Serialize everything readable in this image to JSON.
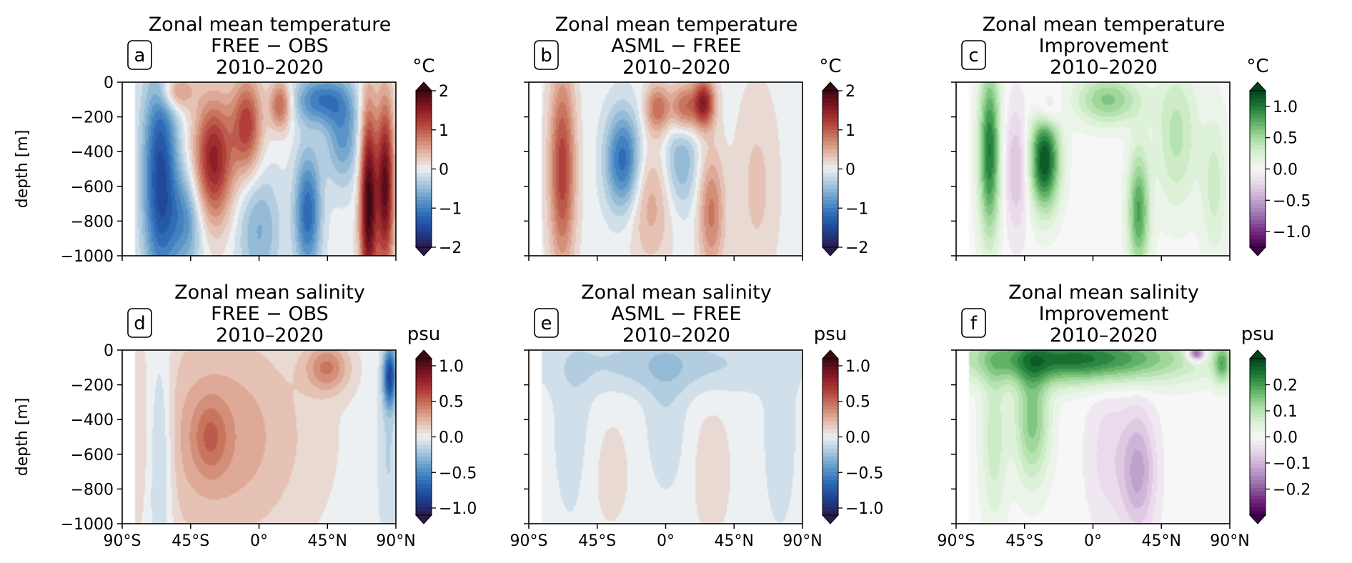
{
  "figure": {
    "layout": "2x3 panel grid"
  },
  "colors": {
    "balance": [
      "#2c1a4c",
      "#1f3f8f",
      "#2a68b5",
      "#5d98c9",
      "#a7c6dc",
      "#edf0f2",
      "#e4b9a8",
      "#cb7a62",
      "#b03a37",
      "#7f1622",
      "#3c0911"
    ],
    "purple_green": [
      "#40004b",
      "#762a83",
      "#9970ab",
      "#c2a5cf",
      "#e7d4e8",
      "#f7f7f7",
      "#d9f0d3",
      "#a6dba0",
      "#5aae61",
      "#1b7837",
      "#00441b"
    ],
    "axis": "#000000"
  },
  "chart_data": [
    {
      "panel": "a",
      "type": "heatmap",
      "title": [
        "Zonal mean temperature",
        "FREE − OBS",
        "2010–2020"
      ],
      "ylabel": "depth [m]",
      "unit": "°C",
      "colormap": "balance",
      "vmin": -2,
      "vmax": 2,
      "cbar_ticks": [
        {
          "v": 2,
          "t": "2"
        },
        {
          "v": 1,
          "t": "1"
        },
        {
          "v": 0,
          "t": "0"
        },
        {
          "v": -1,
          "t": "−1"
        },
        {
          "v": -2,
          "t": "−2"
        }
      ],
      "xlim": [
        -90,
        90
      ],
      "ylim": [
        -1000,
        0
      ],
      "xticks": [
        {
          "v": -90,
          "t": "90°S"
        },
        {
          "v": -45,
          "t": "45°S"
        },
        {
          "v": 0,
          "t": "0°"
        },
        {
          "v": 45,
          "t": "45°N"
        },
        {
          "v": 90,
          "t": "90°N"
        }
      ],
      "yticks": [
        {
          "v": 0,
          "t": "0"
        },
        {
          "v": -200,
          "t": "−200"
        },
        {
          "v": -400,
          "t": "−400"
        },
        {
          "v": -600,
          "t": "−600"
        },
        {
          "v": -800,
          "t": "−800"
        },
        {
          "v": -1000,
          "t": "−1000"
        }
      ],
      "show_xticklabels": false,
      "show_yticklabels": true,
      "features": [
        {
          "lat": -65,
          "depth": -550,
          "wlat": 8,
          "wdep": 450,
          "amp": -1.5
        },
        {
          "lat": -30,
          "depth": -450,
          "wlat": 9,
          "wdep": 250,
          "amp": 1.5
        },
        {
          "lat": -8,
          "depth": -250,
          "wlat": 7,
          "wdep": 200,
          "amp": 1.2
        },
        {
          "lat": 14,
          "depth": -130,
          "wlat": 5,
          "wdep": 100,
          "amp": 1.0
        },
        {
          "lat": -48,
          "depth": -800,
          "wlat": 8,
          "wdep": 200,
          "amp": -0.8
        },
        {
          "lat": 0,
          "depth": -850,
          "wlat": 10,
          "wdep": 250,
          "amp": -0.6
        },
        {
          "lat": 32,
          "depth": -750,
          "wlat": 6,
          "wdep": 250,
          "amp": -1.2
        },
        {
          "lat": 40,
          "depth": -100,
          "wlat": 12,
          "wdep": 100,
          "amp": -1.0
        },
        {
          "lat": 72,
          "depth": -700,
          "wlat": 4,
          "wdep": 400,
          "amp": 2.0
        },
        {
          "lat": 83,
          "depth": -600,
          "wlat": 4,
          "wdep": 350,
          "amp": 1.8
        },
        {
          "lat": -55,
          "depth": -50,
          "wlat": 8,
          "wdep": 80,
          "amp": 0.8
        },
        {
          "lat": 55,
          "depth": -300,
          "wlat": 8,
          "wdep": 200,
          "amp": -0.8
        }
      ]
    },
    {
      "panel": "b",
      "type": "heatmap",
      "title": [
        "Zonal mean temperature",
        "ASML − FREE",
        "2010–2020"
      ],
      "unit": "°C",
      "colormap": "balance",
      "vmin": -2,
      "vmax": 2,
      "cbar_ticks": [
        {
          "v": 2,
          "t": "2"
        },
        {
          "v": 1,
          "t": "1"
        },
        {
          "v": 0,
          "t": "0"
        },
        {
          "v": -1,
          "t": "−1"
        },
        {
          "v": -2,
          "t": "−2"
        }
      ],
      "xlim": [
        -90,
        90
      ],
      "ylim": [
        -1000,
        0
      ],
      "xticks": [
        {
          "v": -90,
          "t": "90°S"
        },
        {
          "v": -45,
          "t": "45°S"
        },
        {
          "v": 0,
          "t": "0°"
        },
        {
          "v": 45,
          "t": "45°N"
        },
        {
          "v": 90,
          "t": "90°N"
        }
      ],
      "yticks": [
        {
          "v": 0,
          "t": "0"
        },
        {
          "v": -200,
          "t": "−200"
        },
        {
          "v": -400,
          "t": "−400"
        },
        {
          "v": -600,
          "t": "−600"
        },
        {
          "v": -800,
          "t": "−800"
        },
        {
          "v": -1000,
          "t": "−1000"
        }
      ],
      "show_xticklabels": false,
      "show_yticklabels": false,
      "features": [
        {
          "lat": -68,
          "depth": -500,
          "wlat": 6,
          "wdep": 400,
          "amp": 1.2
        },
        {
          "lat": -28,
          "depth": -450,
          "wlat": 8,
          "wdep": 200,
          "amp": -1.2
        },
        {
          "lat": -5,
          "depth": -150,
          "wlat": 6,
          "wdep": 100,
          "amp": 0.9
        },
        {
          "lat": 12,
          "depth": -150,
          "wlat": 6,
          "wdep": 100,
          "amp": 1.0
        },
        {
          "lat": 25,
          "depth": -120,
          "wlat": 5,
          "wdep": 100,
          "amp": 1.5
        },
        {
          "lat": 30,
          "depth": -750,
          "wlat": 6,
          "wdep": 250,
          "amp": 0.8
        },
        {
          "lat": -10,
          "depth": -700,
          "wlat": 10,
          "wdep": 250,
          "amp": 0.5
        },
        {
          "lat": 10,
          "depth": -450,
          "wlat": 8,
          "wdep": 200,
          "amp": -0.6
        },
        {
          "lat": 60,
          "depth": -600,
          "wlat": 10,
          "wdep": 400,
          "amp": 0.3
        }
      ]
    },
    {
      "panel": "c",
      "type": "heatmap",
      "title": [
        "Zonal mean temperature",
        "Improvement",
        "2010–2020"
      ],
      "unit": "°C",
      "colormap": "purple_green",
      "vmin": -1.25,
      "vmax": 1.25,
      "cbar_ticks": [
        {
          "v": 1.0,
          "t": "1.0"
        },
        {
          "v": 0.5,
          "t": "0.5"
        },
        {
          "v": 0.0,
          "t": "0.0"
        },
        {
          "v": -0.5,
          "t": "−0.5"
        },
        {
          "v": -1.0,
          "t": "−1.0"
        }
      ],
      "xlim": [
        -90,
        90
      ],
      "ylim": [
        -1000,
        0
      ],
      "xticks": [
        {
          "v": -90,
          "t": "90°S"
        },
        {
          "v": -45,
          "t": "45°S"
        },
        {
          "v": 0,
          "t": "0°"
        },
        {
          "v": 45,
          "t": "45°N"
        },
        {
          "v": 90,
          "t": "90°N"
        }
      ],
      "yticks": [
        {
          "v": 0,
          "t": "0"
        },
        {
          "v": -200,
          "t": "−200"
        },
        {
          "v": -400,
          "t": "−400"
        },
        {
          "v": -600,
          "t": "−600"
        },
        {
          "v": -800,
          "t": "−800"
        },
        {
          "v": -1000,
          "t": "−1000"
        }
      ],
      "show_xticklabels": false,
      "show_yticklabels": false,
      "features": [
        {
          "lat": -68,
          "depth": -400,
          "wlat": 5,
          "wdep": 350,
          "amp": 1.0
        },
        {
          "lat": -32,
          "depth": -450,
          "wlat": 7,
          "wdep": 200,
          "amp": 1.2
        },
        {
          "lat": -50,
          "depth": -500,
          "wlat": 6,
          "wdep": 250,
          "amp": -0.4
        },
        {
          "lat": 30,
          "depth": -750,
          "wlat": 5,
          "wdep": 250,
          "amp": 0.8
        },
        {
          "lat": 10,
          "depth": -100,
          "wlat": 15,
          "wdep": 100,
          "amp": 0.6
        },
        {
          "lat": -30,
          "depth": -150,
          "wlat": 6,
          "wdep": 80,
          "amp": -0.4
        },
        {
          "lat": 55,
          "depth": -300,
          "wlat": 10,
          "wdep": 300,
          "amp": 0.4
        },
        {
          "lat": 80,
          "depth": -600,
          "wlat": 6,
          "wdep": 300,
          "amp": 0.3
        }
      ]
    },
    {
      "panel": "d",
      "type": "heatmap",
      "title": [
        "Zonal mean salinity",
        "FREE − OBS",
        "2010–2020"
      ],
      "ylabel": "depth [m]",
      "unit": "psu",
      "colormap": "balance",
      "vmin": -1.1,
      "vmax": 1.1,
      "cbar_ticks": [
        {
          "v": 1.0,
          "t": "1.0"
        },
        {
          "v": 0.5,
          "t": "0.5"
        },
        {
          "v": 0.0,
          "t": "0.0"
        },
        {
          "v": -0.5,
          "t": "−0.5"
        },
        {
          "v": -1.0,
          "t": "−1.0"
        }
      ],
      "xlim": [
        -90,
        90
      ],
      "ylim": [
        -1000,
        0
      ],
      "xticks": [
        {
          "v": -90,
          "t": "90°S"
        },
        {
          "v": -45,
          "t": "45°S"
        },
        {
          "v": 0,
          "t": "0°"
        },
        {
          "v": 45,
          "t": "45°N"
        },
        {
          "v": 90,
          "t": "90°N"
        }
      ],
      "yticks": [
        {
          "v": 0,
          "t": "0"
        },
        {
          "v": -200,
          "t": "−200"
        },
        {
          "v": -400,
          "t": "−400"
        },
        {
          "v": -600,
          "t": "−600"
        },
        {
          "v": -800,
          "t": "−800"
        },
        {
          "v": -1000,
          "t": "−1000"
        }
      ],
      "show_xticklabels": true,
      "show_yticklabels": true,
      "features": [
        {
          "lat": -25,
          "depth": -500,
          "wlat": 40,
          "wdep": 450,
          "amp": 0.3
        },
        {
          "lat": -32,
          "depth": -500,
          "wlat": 8,
          "wdep": 150,
          "amp": 0.25
        },
        {
          "lat": -65,
          "depth": -600,
          "wlat": 6,
          "wdep": 450,
          "amp": -0.3
        },
        {
          "lat": 45,
          "depth": -100,
          "wlat": 10,
          "wdep": 100,
          "amp": 0.4
        },
        {
          "lat": 86,
          "depth": -150,
          "wlat": 3,
          "wdep": 120,
          "amp": -0.8
        },
        {
          "lat": 85,
          "depth": -600,
          "wlat": 5,
          "wdep": 400,
          "amp": -0.15
        }
      ]
    },
    {
      "panel": "e",
      "type": "heatmap",
      "title": [
        "Zonal mean salinity",
        "ASML − FREE",
        "2010–2020"
      ],
      "unit": "psu",
      "colormap": "balance",
      "vmin": -1.1,
      "vmax": 1.1,
      "cbar_ticks": [
        {
          "v": 1.0,
          "t": "1.0"
        },
        {
          "v": 0.5,
          "t": "0.5"
        },
        {
          "v": 0.0,
          "t": "0.0"
        },
        {
          "v": -0.5,
          "t": "−0.5"
        },
        {
          "v": -1.0,
          "t": "−1.0"
        }
      ],
      "xlim": [
        -90,
        90
      ],
      "ylim": [
        -1000,
        0
      ],
      "xticks": [
        {
          "v": -90,
          "t": "90°S"
        },
        {
          "v": -45,
          "t": "45°S"
        },
        {
          "v": 0,
          "t": "0°"
        },
        {
          "v": 45,
          "t": "45°N"
        },
        {
          "v": 90,
          "t": "90°N"
        }
      ],
      "yticks": [
        {
          "v": 0,
          "t": "0"
        },
        {
          "v": -200,
          "t": "−200"
        },
        {
          "v": -400,
          "t": "−400"
        },
        {
          "v": -600,
          "t": "−600"
        },
        {
          "v": -800,
          "t": "−800"
        },
        {
          "v": -1000,
          "t": "−1000"
        }
      ],
      "show_xticklabels": true,
      "show_yticklabels": false,
      "features": [
        {
          "lat": 0,
          "depth": -80,
          "wlat": 50,
          "wdep": 120,
          "amp": -0.2
        },
        {
          "lat": -60,
          "depth": -500,
          "wlat": 10,
          "wdep": 400,
          "amp": -0.12
        },
        {
          "lat": 0,
          "depth": -400,
          "wlat": 10,
          "wdep": 300,
          "amp": -0.12
        },
        {
          "lat": -40,
          "depth": -700,
          "wlat": 15,
          "wdep": 300,
          "amp": 0.08
        },
        {
          "lat": 30,
          "depth": -700,
          "wlat": 10,
          "wdep": 300,
          "amp": 0.1
        },
        {
          "lat": 75,
          "depth": -500,
          "wlat": 8,
          "wdep": 400,
          "amp": -0.1
        }
      ]
    },
    {
      "panel": "f",
      "type": "heatmap",
      "title": [
        "Zonal mean salinity",
        "Improvement",
        "2010–2020"
      ],
      "unit": "psu",
      "colormap": "purple_green",
      "vmin": -0.3,
      "vmax": 0.3,
      "cbar_ticks": [
        {
          "v": 0.2,
          "t": "0.2"
        },
        {
          "v": 0.1,
          "t": "0.1"
        },
        {
          "v": 0.0,
          "t": "0.0"
        },
        {
          "v": -0.1,
          "t": "−0.1"
        },
        {
          "v": -0.2,
          "t": "−0.2"
        }
      ],
      "xlim": [
        -90,
        90
      ],
      "ylim": [
        -1000,
        0
      ],
      "xticks": [
        {
          "v": -90,
          "t": "90°S"
        },
        {
          "v": -45,
          "t": "45°S"
        },
        {
          "v": 0,
          "t": "0°"
        },
        {
          "v": 45,
          "t": "45°N"
        },
        {
          "v": 90,
          "t": "90°N"
        }
      ],
      "yticks": [
        {
          "v": 0,
          "t": "0"
        },
        {
          "v": -200,
          "t": "−200"
        },
        {
          "v": -400,
          "t": "−400"
        },
        {
          "v": -600,
          "t": "−600"
        },
        {
          "v": -800,
          "t": "−800"
        },
        {
          "v": -1000,
          "t": "−1000"
        }
      ],
      "show_xticklabels": true,
      "show_yticklabels": false,
      "features": [
        {
          "lat": -10,
          "depth": -50,
          "wlat": 50,
          "wdep": 100,
          "amp": 0.25
        },
        {
          "lat": -40,
          "depth": -400,
          "wlat": 8,
          "wdep": 250,
          "amp": 0.15
        },
        {
          "lat": -65,
          "depth": -500,
          "wlat": 6,
          "wdep": 350,
          "amp": 0.08
        },
        {
          "lat": 30,
          "depth": -700,
          "wlat": 8,
          "wdep": 250,
          "amp": -0.12
        },
        {
          "lat": 10,
          "depth": -600,
          "wlat": 10,
          "wdep": 300,
          "amp": -0.05
        },
        {
          "lat": 68,
          "depth": -20,
          "wlat": 4,
          "wdep": 30,
          "amp": -0.25
        },
        {
          "lat": 85,
          "depth": -80,
          "wlat": 4,
          "wdep": 80,
          "amp": 0.15
        }
      ]
    }
  ]
}
